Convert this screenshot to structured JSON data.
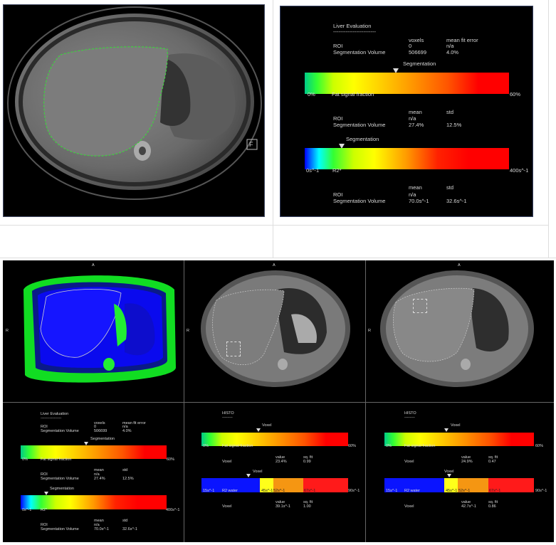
{
  "top": {
    "liver_eval": {
      "title": "Liver Evaluation",
      "dashes": "------------------------",
      "col_voxels": "voxels",
      "col_mean_fit_error": "mean fit error",
      "row_roi": "ROI",
      "row_roi_voxels": "0",
      "row_roi_fit": "n/a",
      "row_seg": "Segmentation Volume",
      "row_seg_voxels": "506699",
      "row_seg_fit": "4.0%"
    },
    "fat": {
      "marker_label": "Segmentation",
      "min": "0%",
      "max": "60%",
      "name": "Fat signal fraction",
      "col_mean": "mean",
      "col_std": "std",
      "roi": "ROI",
      "roi_mean": "n/a",
      "seg": "Segmentation Volume",
      "seg_mean": "27.4%",
      "seg_std": "12.5%",
      "marker_value": 0.457
    },
    "r2": {
      "marker_label": "Segmentation",
      "min": "0s^-1",
      "max": "400s^-1",
      "name": "R2*",
      "col_mean": "mean",
      "col_std": "std",
      "roi": "ROI",
      "roi_mean": "n/a",
      "seg": "Segmentation Volume",
      "seg_mean": "70.0s^-1",
      "seg_std": "32.6s^-1",
      "marker_value": 0.175
    },
    "image_badge": "F"
  },
  "bottom": {
    "orient_a": "A",
    "orient_r": "R",
    "left": {
      "title": "Liver Evaluation",
      "dashes": "----------------",
      "col_voxels": "voxels",
      "col_fit": "mean fit error",
      "roi": "ROI",
      "roi_voxels": "0",
      "roi_fit": "n/a",
      "seg": "Segmentation Volume",
      "seg_voxels": "506699",
      "seg_fit": "4.0%",
      "fat_label": "Segmentation",
      "fat_min": "0%",
      "fat_max": "60%",
      "fat_name": "Fat signal fraction",
      "fat_col_mean": "mean",
      "fat_col_std": "std",
      "fat_roi": "ROI",
      "fat_roi_mean": "n/a",
      "fat_seg": "Segmentation Volume",
      "fat_seg_mean": "27.4%",
      "fat_seg_std": "12.5%",
      "r2_label": "Segmentation",
      "r2_min": "0s^-1",
      "r2_max": "400s^-1",
      "r2_name": "R2*",
      "r2_col_mean": "mean",
      "r2_col_std": "std",
      "r2_roi": "ROI",
      "r2_roi_mean": "n/a",
      "r2_seg": "Segmentation Volume",
      "r2_seg_mean": "70.0s^-1",
      "r2_seg_std": "32.6s^-1"
    },
    "mid": {
      "title": "HISTO",
      "dashes": "--------",
      "fat_label": "Voxel",
      "fat_min": "0%",
      "fat_max": "60%",
      "fat_name": "Fat signal fraction",
      "fat_col_value": "value",
      "fat_col_fit": "sq. fit",
      "fat_voxel": "Voxel",
      "fat_value": "23.4%",
      "fat_fit": "0.99",
      "r2_label": "Voxel",
      "r2_min": "15s^-1",
      "r2_name": "R2 water",
      "r2_t1": "45s^-1",
      "r2_t2": "52s^-1",
      "r2_t3": "67s^-1",
      "r2_max": "90s^-1",
      "r2_col_value": "value",
      "r2_col_fit": "sq. fit",
      "r2_voxel": "Voxel",
      "r2_value": "39.1s^-1",
      "r2_fit": "1.00"
    },
    "right": {
      "title": "HISTO",
      "dashes": "--------",
      "fat_label": "Voxel",
      "fat_min": "0%",
      "fat_max": "60%",
      "fat_name": "Fat signal fraction",
      "fat_col_value": "value",
      "fat_col_fit": "sq. fit",
      "fat_voxel": "Voxel",
      "fat_value": "24.9%",
      "fat_fit": "0.47",
      "r2_label": "Voxel",
      "r2_min": "15s^-1",
      "r2_name": "R2 water",
      "r2_t1": "45s^-1",
      "r2_t2": "52s^-1",
      "r2_t3": "67s^-1",
      "r2_max": "90s^-1",
      "r2_col_value": "value",
      "r2_col_fit": "sq. fit",
      "r2_voxel": "Voxel",
      "r2_value": "42.7s^-1",
      "r2_fit": "0.86"
    }
  },
  "colors": {
    "fat_gradient": "linear-gradient(to right, #00cc88, #33ff33 6%, #ccff00 14%, #ffff00 24%, #ffcc00 38%, #ff9900 52%, #ff5500 70%, #ff0000 85%, #ff0000)",
    "r2_gradient": "linear-gradient(to right, #0000ff, #00ffff 7%, #33ff33 14%, #ccff00 24%, #ffff00 34%, #ff9900 50%, #ff2200 65%, #ff0000 80%, #ff0000)",
    "r2_water_blue": "#0a14ff",
    "r2_water_yellow": "#ffff1a",
    "r2_water_orange": "#f59612",
    "r2_water_red": "#ff1a1a",
    "liver_outline": "#3fd13f"
  }
}
